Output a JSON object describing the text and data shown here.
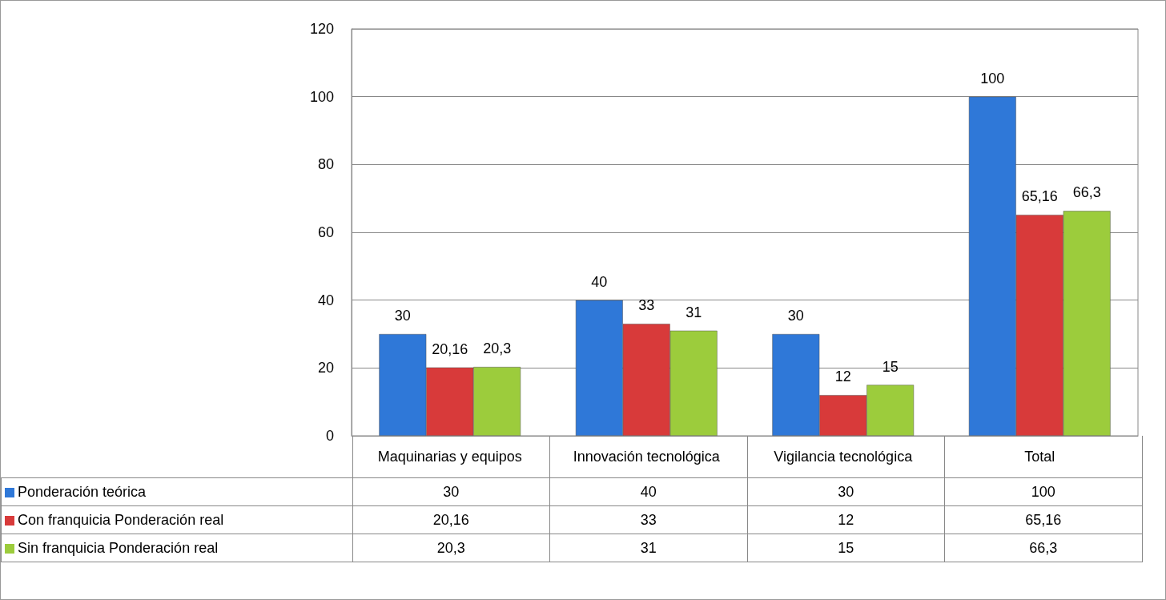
{
  "chart_data": {
    "type": "bar",
    "categories": [
      "Maquinarias y equipos",
      "Innovación tecnológica",
      "Vigilancia tecnológica",
      "Total"
    ],
    "series": [
      {
        "name": "Ponderación teórica",
        "color": "#2f78d8",
        "values": [
          30,
          40,
          30,
          100
        ],
        "value_labels": [
          "30",
          "40",
          "30",
          "100"
        ]
      },
      {
        "name": "Con franquicia Ponderación real",
        "color": "#d83a3a",
        "values": [
          20.16,
          33,
          12,
          65.16
        ],
        "value_labels": [
          "20,16",
          "33",
          "12",
          "65,16"
        ]
      },
      {
        "name": "Sin franquicia Ponderación real",
        "color": "#9ccc3c",
        "values": [
          20.3,
          31,
          15,
          66.3
        ],
        "value_labels": [
          "20,3",
          "31",
          "15",
          "66,3"
        ]
      }
    ],
    "ylim": [
      0,
      120
    ],
    "yticks": [
      0,
      20,
      40,
      60,
      80,
      100,
      120
    ],
    "grid": "y",
    "legend": "bottom"
  }
}
